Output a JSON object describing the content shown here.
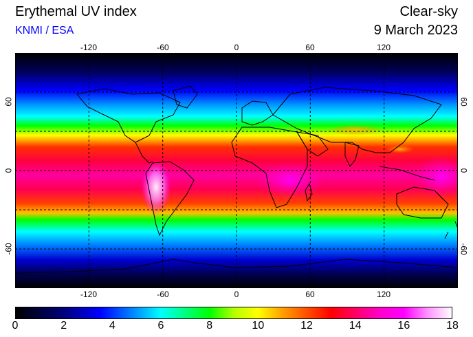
{
  "header": {
    "title": "Erythemal UV index",
    "agency": "KNMI / ESA",
    "condition": "Clear-sky",
    "date": "9 March 2023"
  },
  "map": {
    "lon_ticks_top": [
      "-120",
      "-60",
      "0",
      "60",
      "120"
    ],
    "lon_ticks_bottom": [
      "-120",
      "-60",
      "0",
      "60",
      "120"
    ],
    "lat_ticks_left": [
      "60",
      "0",
      "-60"
    ],
    "lat_ticks_right": [
      "60",
      "0",
      "-60"
    ],
    "lon_range": [
      -180,
      180
    ],
    "lat_range": [
      -90,
      90
    ],
    "grid": true,
    "gridlines_lon": [
      -120,
      -60,
      0,
      60,
      120
    ],
    "gridlines_lat": [
      -60,
      -30,
      0,
      30,
      60
    ]
  },
  "colorbar": {
    "labels": [
      "0",
      "2",
      "4",
      "6",
      "8",
      "10",
      "12",
      "14",
      "16",
      "18"
    ],
    "range": [
      0,
      18
    ],
    "stops": [
      {
        "v": 0,
        "color": "#000000"
      },
      {
        "v": 2,
        "color": "#00007a"
      },
      {
        "v": 3.5,
        "color": "#0000ff"
      },
      {
        "v": 5,
        "color": "#0096ff"
      },
      {
        "v": 6,
        "color": "#00ffff"
      },
      {
        "v": 7,
        "color": "#00ff80"
      },
      {
        "v": 8,
        "color": "#00ff00"
      },
      {
        "v": 9,
        "color": "#b4ff00"
      },
      {
        "v": 10,
        "color": "#ffff00"
      },
      {
        "v": 11,
        "color": "#ffa000"
      },
      {
        "v": 12,
        "color": "#ff5000"
      },
      {
        "v": 13,
        "color": "#ff0000"
      },
      {
        "v": 14,
        "color": "#ff0064"
      },
      {
        "v": 15,
        "color": "#ff00c8"
      },
      {
        "v": 16,
        "color": "#ff00ff"
      },
      {
        "v": 17,
        "color": "#ff96ff"
      },
      {
        "v": 18,
        "color": "#ffffff"
      }
    ]
  },
  "colors": {
    "agency": "#0000ff"
  }
}
